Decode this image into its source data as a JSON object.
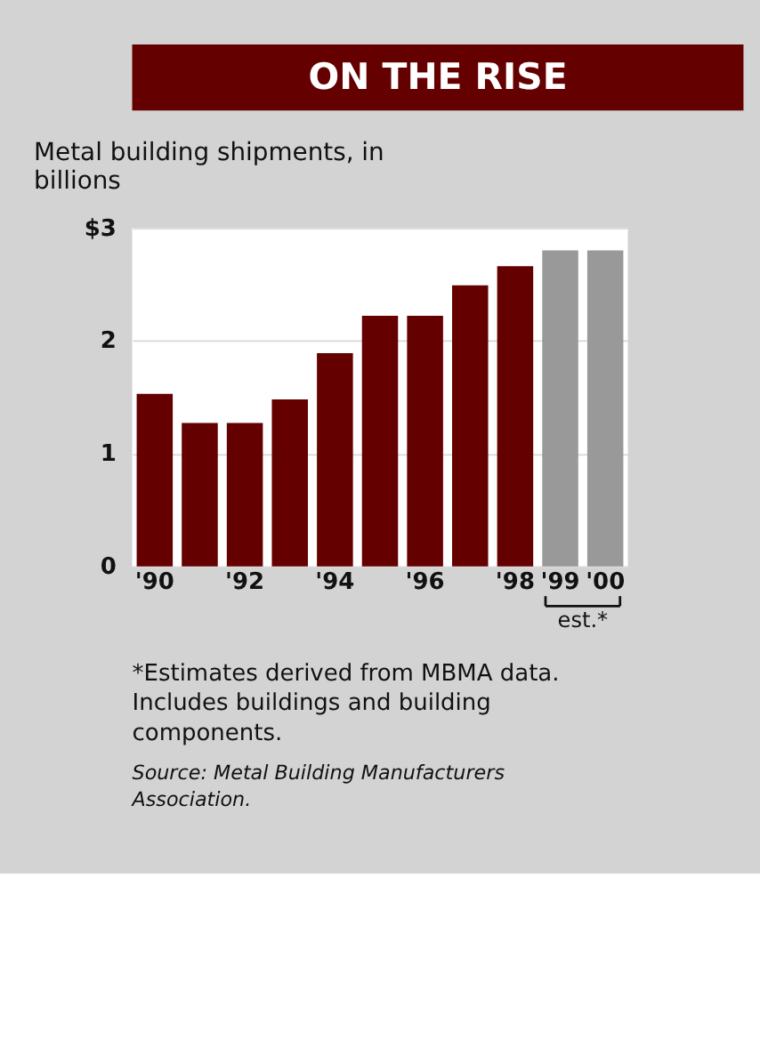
{
  "chart_data": {
    "type": "bar",
    "title": "ON THE RISE",
    "subtitle": "Metal building shipments, in billions",
    "categories": [
      "'90",
      null,
      "'92",
      null,
      "'94",
      null,
      "'96",
      null,
      "'98",
      "'99",
      "'00"
    ],
    "values": [
      1.53,
      1.27,
      1.27,
      1.48,
      1.89,
      2.22,
      2.22,
      2.49,
      2.66,
      2.8,
      2.8
    ],
    "colors": [
      "#640000",
      "#640000",
      "#640000",
      "#640000",
      "#640000",
      "#640000",
      "#640000",
      "#640000",
      "#640000",
      "#999999",
      "#999999"
    ],
    "ylim": [
      0,
      3
    ],
    "yticks": [
      0,
      1,
      2,
      {
        "value": 3,
        "label": "$3"
      }
    ],
    "grid": "y",
    "annotations": [
      "est.*",
      "*Estimates derived from MBMA data. Includes buildings and building components.",
      "Source: Metal Building Manufacturers Association."
    ]
  }
}
